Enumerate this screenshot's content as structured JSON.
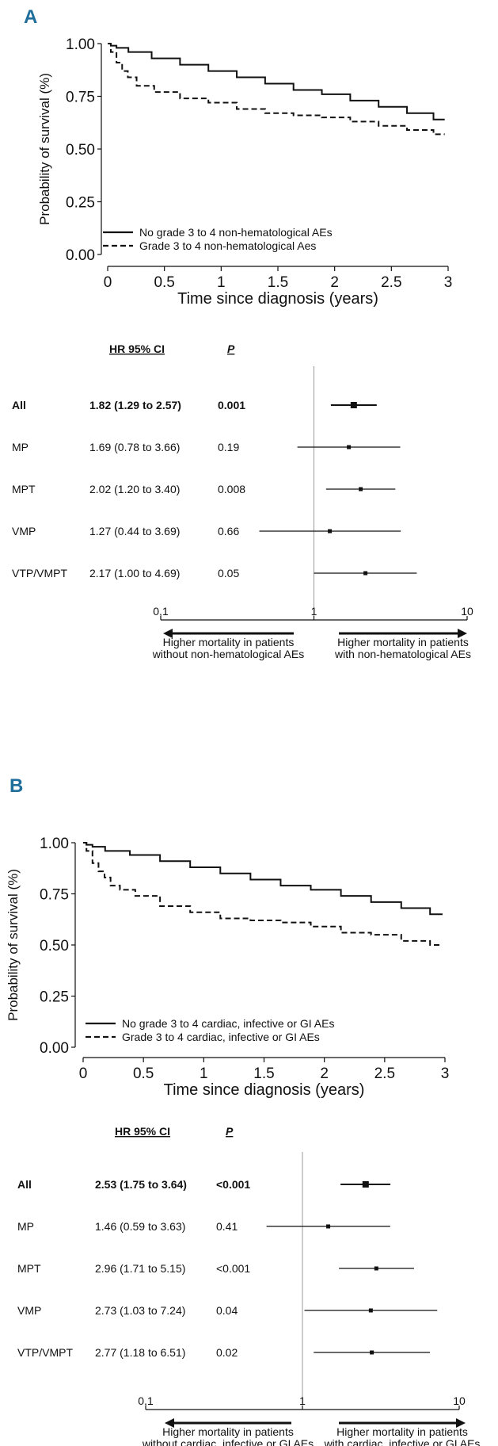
{
  "panels": [
    {
      "letter": "A",
      "km": {
        "type": "line",
        "ylabel": "Probability of survival (%)",
        "xlabel": "Time since diagnosis (years)",
        "xlim": [
          0,
          3
        ],
        "ylim": [
          0,
          1
        ],
        "xticks": [
          "0",
          "0.5",
          "1",
          "1.5",
          "2",
          "2.5",
          "3"
        ],
        "yticks": [
          "0.00",
          "0.25",
          "0.50",
          "0.75",
          "1.00"
        ],
        "legend_position": "bottom-left",
        "series": [
          {
            "name": "No grade 3 to 4 non-hematological AEs",
            "style": "solid",
            "x": [
              0,
              0.05,
              0.1,
              0.25,
              0.5,
              0.75,
              1,
              1.25,
              1.5,
              1.75,
              2,
              2.25,
              2.5,
              2.75,
              2.97
            ],
            "y": [
              1.0,
              0.99,
              0.98,
              0.96,
              0.93,
              0.9,
              0.87,
              0.84,
              0.81,
              0.78,
              0.76,
              0.73,
              0.7,
              0.67,
              0.64
            ]
          },
          {
            "name": "Grade 3 to 4 non-hematological Aes",
            "style": "dashed",
            "x": [
              0,
              0.05,
              0.1,
              0.15,
              0.2,
              0.3,
              0.5,
              0.75,
              1,
              1.25,
              1.5,
              1.75,
              2,
              2.25,
              2.5,
              2.75,
              2.97
            ],
            "y": [
              1.0,
              0.96,
              0.91,
              0.87,
              0.84,
              0.8,
              0.77,
              0.74,
              0.72,
              0.69,
              0.67,
              0.66,
              0.65,
              0.63,
              0.61,
              0.59,
              0.57
            ]
          }
        ]
      },
      "forest": {
        "type": "forest",
        "col_hr_header": "HR 95% CI",
        "col_p_header": "P",
        "axis_ticks": [
          "0,1",
          "1",
          "10"
        ],
        "axis_values": [
          0.1,
          1,
          10
        ],
        "left_caption_1": "Higher mortality in patients",
        "left_caption_2": "without non-hematological AEs",
        "right_caption_1": "Higher mortality in patients",
        "right_caption_2": "with non-hematological AEs",
        "rows": [
          {
            "label": "All",
            "hr_text": "1.82 (1.29 to 2.57)",
            "p": "0.001",
            "bold": true,
            "hr": 1.82,
            "lo": 1.29,
            "hi": 2.57
          },
          {
            "label": "MP",
            "hr_text": "1.69 (0.78 to 3.66)",
            "p": "0.19",
            "bold": false,
            "hr": 1.69,
            "lo": 0.78,
            "hi": 3.66
          },
          {
            "label": "MPT",
            "hr_text": "2.02 (1.20 to 3.40)",
            "p": "0.008",
            "bold": false,
            "hr": 2.02,
            "lo": 1.2,
            "hi": 3.4
          },
          {
            "label": "VMP",
            "hr_text": "1.27 (0.44 to 3.69)",
            "p": "0.66",
            "bold": false,
            "hr": 1.27,
            "lo": 0.44,
            "hi": 3.69
          },
          {
            "label": "VTP/VMPT",
            "hr_text": "2.17 (1.00 to 4.69)",
            "p": "0.05",
            "bold": false,
            "hr": 2.17,
            "lo": 1.0,
            "hi": 4.69
          }
        ]
      }
    },
    {
      "letter": "B",
      "km": {
        "type": "line",
        "ylabel": "Probability of survival (%)",
        "xlabel": "Time since diagnosis (years)",
        "xlim": [
          0,
          3
        ],
        "ylim": [
          0,
          1
        ],
        "xticks": [
          "0",
          "0.5",
          "1",
          "1.5",
          "2",
          "2.5",
          "3"
        ],
        "yticks": [
          "0.00",
          "0.25",
          "0.50",
          "0.75",
          "1.00"
        ],
        "legend_position": "bottom-left",
        "series": [
          {
            "name": "No grade 3 to 4 cardiac, infective or GI AEs",
            "style": "solid",
            "x": [
              0,
              0.05,
              0.1,
              0.25,
              0.5,
              0.75,
              1,
              1.25,
              1.5,
              1.75,
              2,
              2.25,
              2.5,
              2.75,
              2.98
            ],
            "y": [
              1.0,
              0.99,
              0.98,
              0.96,
              0.94,
              0.91,
              0.88,
              0.85,
              0.82,
              0.79,
              0.77,
              0.74,
              0.71,
              0.68,
              0.65
            ]
          },
          {
            "name": "Grade 3 to 4 cardiac, infective or GI AEs",
            "style": "dashed",
            "x": [
              0,
              0.05,
              0.1,
              0.15,
              0.2,
              0.25,
              0.35,
              0.5,
              0.75,
              1,
              1.25,
              1.5,
              1.75,
              2,
              2.25,
              2.5,
              2.75,
              2.98
            ],
            "y": [
              1.0,
              0.96,
              0.9,
              0.86,
              0.83,
              0.79,
              0.77,
              0.74,
              0.69,
              0.66,
              0.63,
              0.62,
              0.61,
              0.59,
              0.56,
              0.55,
              0.52,
              0.5
            ]
          }
        ]
      },
      "forest": {
        "type": "forest",
        "col_hr_header": "HR 95% CI",
        "col_p_header": "P",
        "axis_ticks": [
          "0,1",
          "1",
          "10"
        ],
        "axis_values": [
          0.1,
          1,
          10
        ],
        "left_caption_1": "Higher mortality in patients",
        "left_caption_2": "without cardiac, infective or GI AEs",
        "right_caption_1": "Higher mortality in patients",
        "right_caption_2": "with cardiac, infective or GI AEs",
        "rows": [
          {
            "label": "All",
            "hr_text": "2.53 (1.75 to 3.64)",
            "p": "<0.001",
            "bold": true,
            "hr": 2.53,
            "lo": 1.75,
            "hi": 3.64
          },
          {
            "label": "MP",
            "hr_text": "1.46 (0.59 to 3.63)",
            "p": "0.41",
            "bold": false,
            "hr": 1.46,
            "lo": 0.59,
            "hi": 3.63
          },
          {
            "label": "MPT",
            "hr_text": "2.96 (1.71 to 5.15)",
            "p": "<0.001",
            "bold": false,
            "hr": 2.96,
            "lo": 1.71,
            "hi": 5.15
          },
          {
            "label": "VMP",
            "hr_text": "2.73 (1.03 to 7.24)",
            "p": "0.04",
            "bold": false,
            "hr": 2.73,
            "lo": 1.03,
            "hi": 7.24
          },
          {
            "label": "VTP/VMPT",
            "hr_text": "2.77 (1.18 to 6.51)",
            "p": "0.02",
            "bold": false,
            "hr": 2.77,
            "lo": 1.18,
            "hi": 6.51
          }
        ]
      }
    }
  ],
  "chart_data": [
    {
      "type": "line",
      "panel": "A",
      "xlabel": "Time since diagnosis (years)",
      "ylabel": "Probability of survival (%)",
      "xlim": [
        0,
        3
      ],
      "ylim": [
        0,
        1
      ],
      "series": [
        {
          "name": "No grade 3 to 4 non-hematological AEs",
          "x": [
            0,
            0.5,
            1,
            1.5,
            2,
            2.5,
            2.97
          ],
          "y": [
            1.0,
            0.93,
            0.87,
            0.81,
            0.76,
            0.7,
            0.64
          ]
        },
        {
          "name": "Grade 3 to 4 non-hematological Aes",
          "x": [
            0,
            0.5,
            1,
            1.5,
            2,
            2.5,
            2.97
          ],
          "y": [
            1.0,
            0.77,
            0.72,
            0.67,
            0.65,
            0.61,
            0.57
          ]
        }
      ]
    },
    {
      "type": "forest",
      "panel": "A",
      "categories": [
        "All",
        "MP",
        "MPT",
        "VMP",
        "VTP/VMPT"
      ],
      "hr": [
        1.82,
        1.69,
        2.02,
        1.27,
        2.17
      ],
      "ci_low": [
        1.29,
        0.78,
        1.2,
        0.44,
        1.0
      ],
      "ci_high": [
        2.57,
        3.66,
        3.4,
        3.69,
        4.69
      ],
      "p": [
        "0.001",
        "0.19",
        "0.008",
        "0.66",
        "0.05"
      ],
      "xscale": "log",
      "xlim": [
        0.1,
        10
      ]
    },
    {
      "type": "line",
      "panel": "B",
      "xlabel": "Time since diagnosis (years)",
      "ylabel": "Probability of survival (%)",
      "xlim": [
        0,
        3
      ],
      "ylim": [
        0,
        1
      ],
      "series": [
        {
          "name": "No grade 3 to 4 cardiac, infective or GI AEs",
          "x": [
            0,
            0.5,
            1,
            1.5,
            2,
            2.5,
            2.98
          ],
          "y": [
            1.0,
            0.94,
            0.88,
            0.82,
            0.77,
            0.71,
            0.65
          ]
        },
        {
          "name": "Grade 3 to 4 cardiac, infective or GI AEs",
          "x": [
            0,
            0.5,
            1,
            1.5,
            2,
            2.5,
            2.98
          ],
          "y": [
            1.0,
            0.74,
            0.66,
            0.62,
            0.59,
            0.55,
            0.5
          ]
        }
      ]
    },
    {
      "type": "forest",
      "panel": "B",
      "categories": [
        "All",
        "MP",
        "MPT",
        "VMP",
        "VTP/VMPT"
      ],
      "hr": [
        2.53,
        1.46,
        2.96,
        2.73,
        2.77
      ],
      "ci_low": [
        1.75,
        0.59,
        1.71,
        1.03,
        1.18
      ],
      "ci_high": [
        3.64,
        3.63,
        5.15,
        7.24,
        6.51
      ],
      "p": [
        "<0.001",
        "0.41",
        "<0.001",
        "0.04",
        "0.02"
      ],
      "xscale": "log",
      "xlim": [
        0.1,
        10
      ]
    }
  ]
}
